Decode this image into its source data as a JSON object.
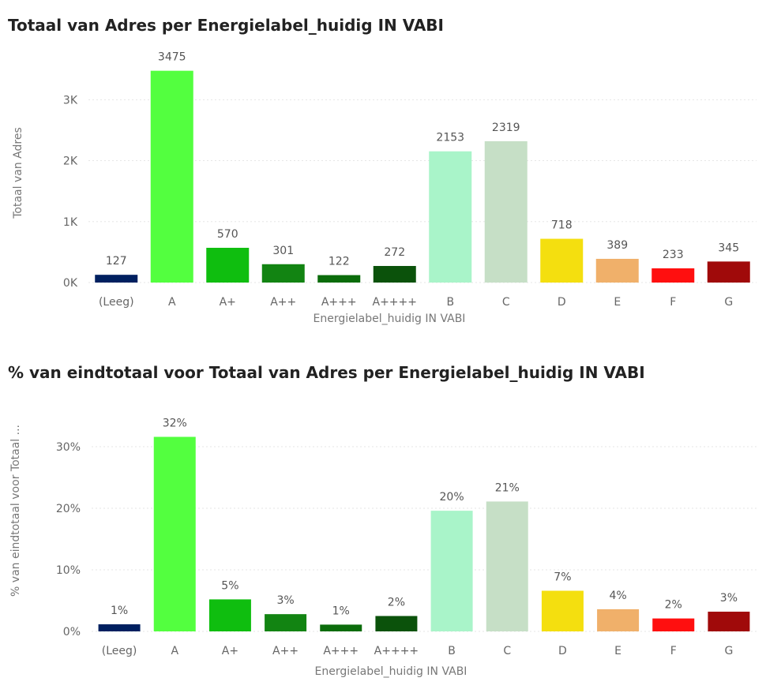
{
  "chart_data": [
    {
      "type": "bar",
      "title": "Totaal van Adres per Energielabel_huidig IN VABI",
      "xlabel": "Energielabel_huidig IN VABI",
      "ylabel": "Totaal van Adres",
      "categories": [
        "(Leeg)",
        "A",
        "A+",
        "A++",
        "A+++",
        "A++++",
        "B",
        "C",
        "D",
        "E",
        "F",
        "G"
      ],
      "values": [
        127,
        3475,
        570,
        301,
        122,
        272,
        2153,
        2319,
        718,
        389,
        233,
        345
      ],
      "data_labels": [
        "127",
        "3475",
        "570",
        "301",
        "122",
        "272",
        "2153",
        "2319",
        "718",
        "389",
        "233",
        "345"
      ],
      "colors": [
        "#002060",
        "#53ff3f",
        "#0fbe0f",
        "#128412",
        "#0b6c0b",
        "#0b520b",
        "#a9f4c9",
        "#c6dfc6",
        "#f4df0f",
        "#f0b06a",
        "#ff0f0f",
        "#a00a0a"
      ],
      "ylim": [
        0,
        3600
      ],
      "yticks": [
        0,
        1000,
        2000,
        3000
      ],
      "ytick_labels": [
        "0K",
        "1K",
        "2K",
        "3K"
      ],
      "grid": true,
      "legend": "none"
    },
    {
      "type": "bar",
      "title": "% van eindtotaal voor Totaal van Adres per Energielabel_huidig IN VABI",
      "xlabel": "Energielabel_huidig IN VABI",
      "ylabel": "% van eindtotaal voor Totaal ...",
      "categories": [
        "(Leeg)",
        "A",
        "A+",
        "A++",
        "A+++",
        "A++++",
        "B",
        "C",
        "D",
        "E",
        "F",
        "G"
      ],
      "values": [
        1.15,
        31.6,
        5.2,
        2.8,
        1.1,
        2.5,
        19.6,
        21.1,
        6.6,
        3.6,
        2.1,
        3.2
      ],
      "data_labels": [
        "1%",
        "32%",
        "5%",
        "3%",
        "1%",
        "2%",
        "20%",
        "21%",
        "7%",
        "4%",
        "2%",
        "3%"
      ],
      "colors": [
        "#002060",
        "#53ff3f",
        "#0fbe0f",
        "#128412",
        "#0b6c0b",
        "#0b520b",
        "#a9f4c9",
        "#c6dfc6",
        "#f4df0f",
        "#f0b06a",
        "#ff0f0f",
        "#a00a0a"
      ],
      "ylim": [
        0,
        35
      ],
      "yticks": [
        0,
        10,
        20,
        30
      ],
      "ytick_labels": [
        "0%",
        "10%",
        "20%",
        "30%"
      ],
      "grid": true,
      "legend": "none"
    }
  ]
}
